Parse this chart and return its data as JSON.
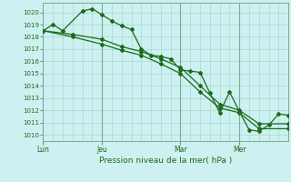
{
  "title": "Pression niveau de la mer( hPa )",
  "bg_color": "#cdf0f0",
  "grid_color": "#a8d8d0",
  "line_color": "#1a6b1a",
  "ylim": [
    1009.5,
    1020.8
  ],
  "yticks": [
    1010,
    1011,
    1012,
    1013,
    1014,
    1015,
    1016,
    1017,
    1018,
    1019,
    1020
  ],
  "x_day_labels": [
    {
      "label": "Lun",
      "x": 0
    },
    {
      "label": "Jeu",
      "x": 3
    },
    {
      "label": "Mar",
      "x": 7
    },
    {
      "label": "Mer",
      "x": 10
    }
  ],
  "xlim": [
    0,
    12.5
  ],
  "series": [
    {
      "x": [
        0.0,
        0.5,
        1.0,
        2.0,
        2.5,
        3.0,
        3.5,
        4.0,
        4.5,
        5.0,
        5.5,
        6.0,
        6.5,
        7.0,
        7.5,
        8.0,
        8.5,
        9.0,
        9.5,
        10.0,
        10.5,
        11.0,
        11.5,
        12.0,
        12.5
      ],
      "y": [
        1018.5,
        1019.0,
        1018.5,
        1020.1,
        1020.3,
        1019.8,
        1019.3,
        1018.9,
        1018.6,
        1017.0,
        1016.5,
        1016.4,
        1016.2,
        1015.3,
        1015.2,
        1015.1,
        1013.4,
        1011.8,
        1013.5,
        1011.9,
        1010.4,
        1010.3,
        1010.8,
        1011.7,
        1011.6
      ]
    },
    {
      "x": [
        0.0,
        1.5,
        3.0,
        4.0,
        5.0,
        6.0,
        7.0,
        8.0,
        9.0,
        10.0,
        11.0,
        12.5
      ],
      "y": [
        1018.5,
        1018.0,
        1017.4,
        1016.9,
        1016.5,
        1015.8,
        1015.0,
        1013.5,
        1012.2,
        1011.8,
        1010.5,
        1010.5
      ]
    },
    {
      "x": [
        0.0,
        1.5,
        3.0,
        4.0,
        5.0,
        6.0,
        7.0,
        8.0,
        9.0,
        10.0,
        11.0,
        12.5
      ],
      "y": [
        1018.5,
        1018.2,
        1017.8,
        1017.2,
        1016.8,
        1016.2,
        1015.5,
        1014.0,
        1012.5,
        1012.0,
        1010.9,
        1010.9
      ]
    }
  ],
  "marker": "D",
  "markersize": 2.0,
  "linewidth": 0.9,
  "ytick_fontsize": 5.0,
  "xtick_fontsize": 5.5,
  "xlabel_fontsize": 6.5
}
